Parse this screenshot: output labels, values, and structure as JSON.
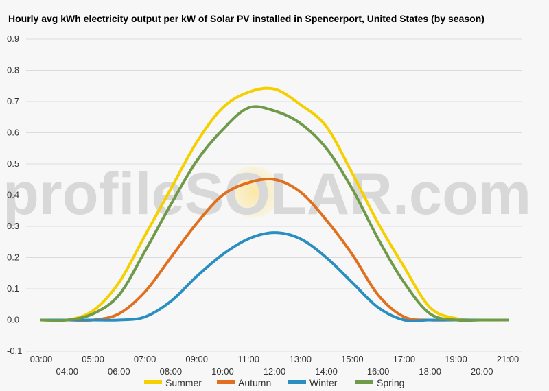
{
  "chart_data": {
    "type": "line",
    "title": "Hourly avg kWh electricity output per kW of Solar PV installed in Spencerport, United States (by season)",
    "xlabel": "",
    "ylabel": "",
    "x": [
      "03:00",
      "04:00",
      "05:00",
      "06:00",
      "07:00",
      "08:00",
      "09:00",
      "10:00",
      "11:00",
      "12:00",
      "13:00",
      "14:00",
      "15:00",
      "16:00",
      "17:00",
      "18:00",
      "19:00",
      "20:00",
      "21:00"
    ],
    "y_ticks": [
      "-0.1",
      "0.0",
      "0.1",
      "0.2",
      "0.3",
      "0.4",
      "0.5",
      "0.6",
      "0.7",
      "0.8",
      "0.9"
    ],
    "ylim": [
      -0.1,
      0.9
    ],
    "grid": true,
    "legend_position": "bottom",
    "series": [
      {
        "name": "Summer",
        "color": "#f5d000",
        "values": [
          0.0,
          0.0,
          0.03,
          0.12,
          0.27,
          0.42,
          0.57,
          0.68,
          0.73,
          0.74,
          0.69,
          0.62,
          0.47,
          0.31,
          0.17,
          0.04,
          0.005,
          0.0,
          0.0
        ]
      },
      {
        "name": "Autumn",
        "color": "#e07020",
        "values": [
          0.0,
          0.0,
          0.0,
          0.02,
          0.09,
          0.2,
          0.31,
          0.4,
          0.44,
          0.45,
          0.41,
          0.32,
          0.21,
          0.08,
          0.01,
          0.0,
          0.0,
          0.0,
          0.0
        ]
      },
      {
        "name": "Winter",
        "color": "#2a8fc0",
        "values": [
          0.0,
          0.0,
          0.0,
          0.0,
          0.01,
          0.06,
          0.14,
          0.21,
          0.26,
          0.28,
          0.26,
          0.2,
          0.12,
          0.04,
          0.0,
          0.0,
          0.0,
          0.0,
          0.0
        ]
      },
      {
        "name": "Spring",
        "color": "#6e9a4a",
        "values": [
          0.0,
          0.0,
          0.02,
          0.08,
          0.22,
          0.37,
          0.51,
          0.61,
          0.68,
          0.67,
          0.63,
          0.55,
          0.42,
          0.26,
          0.12,
          0.02,
          0.0,
          0.0,
          0.0
        ]
      }
    ]
  },
  "watermark": "profileSOLAR.com"
}
